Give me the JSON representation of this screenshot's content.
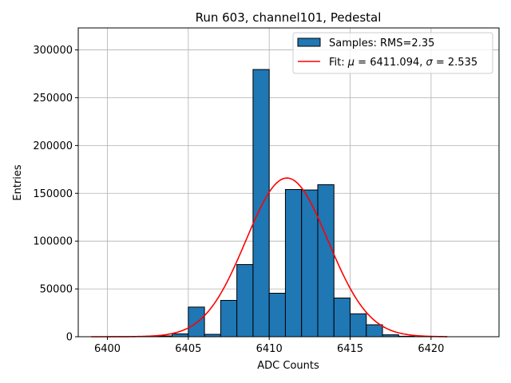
{
  "chart_data": {
    "type": "bar",
    "title": "Run 603, channel101, Pedestal",
    "xlabel": "ADC Counts",
    "ylabel": "Entries",
    "xlim": [
      6398.2,
      6424.2
    ],
    "ylim": [
      0,
      323000
    ],
    "xticks": [
      6400,
      6405,
      6410,
      6415,
      6420
    ],
    "yticks": [
      0,
      50000,
      100000,
      150000,
      200000,
      250000,
      300000
    ],
    "grid": true,
    "legend_location": "top-right",
    "bin_width": 1,
    "bins": [
      {
        "left": 6403,
        "value": 800
      },
      {
        "left": 6404,
        "value": 3000
      },
      {
        "left": 6405,
        "value": 31000
      },
      {
        "left": 6406,
        "value": 2500
      },
      {
        "left": 6407,
        "value": 38000
      },
      {
        "left": 6408,
        "value": 75500
      },
      {
        "left": 6409,
        "value": 279500
      },
      {
        "left": 6410,
        "value": 45500
      },
      {
        "left": 6411,
        "value": 154000
      },
      {
        "left": 6412,
        "value": 153500
      },
      {
        "left": 6413,
        "value": 159000
      },
      {
        "left": 6414,
        "value": 40500
      },
      {
        "left": 6415,
        "value": 24000
      },
      {
        "left": 6416,
        "value": 12500
      },
      {
        "left": 6417,
        "value": 2000
      },
      {
        "left": 6418,
        "value": 500
      }
    ],
    "series": [
      {
        "name": "Samples: RMS=2.35",
        "kind": "histogram",
        "color": "#1f77b4"
      },
      {
        "name": "Fit: μ = 6411.094, σ = 2.535",
        "kind": "line",
        "color": "#ff0000",
        "mu": 6411.094,
        "sigma": 2.535,
        "amplitude": 166000,
        "x_range": [
          6399,
          6421
        ]
      }
    ],
    "legend_label_samples": "Samples: RMS=2.35",
    "legend_label_fit_prefix": "Fit: ",
    "legend_label_mu_symbol": "μ",
    "legend_label_mu_value": " = 6411.094, ",
    "legend_label_sigma_symbol": "σ",
    "legend_label_sigma_value": " = 2.535"
  }
}
